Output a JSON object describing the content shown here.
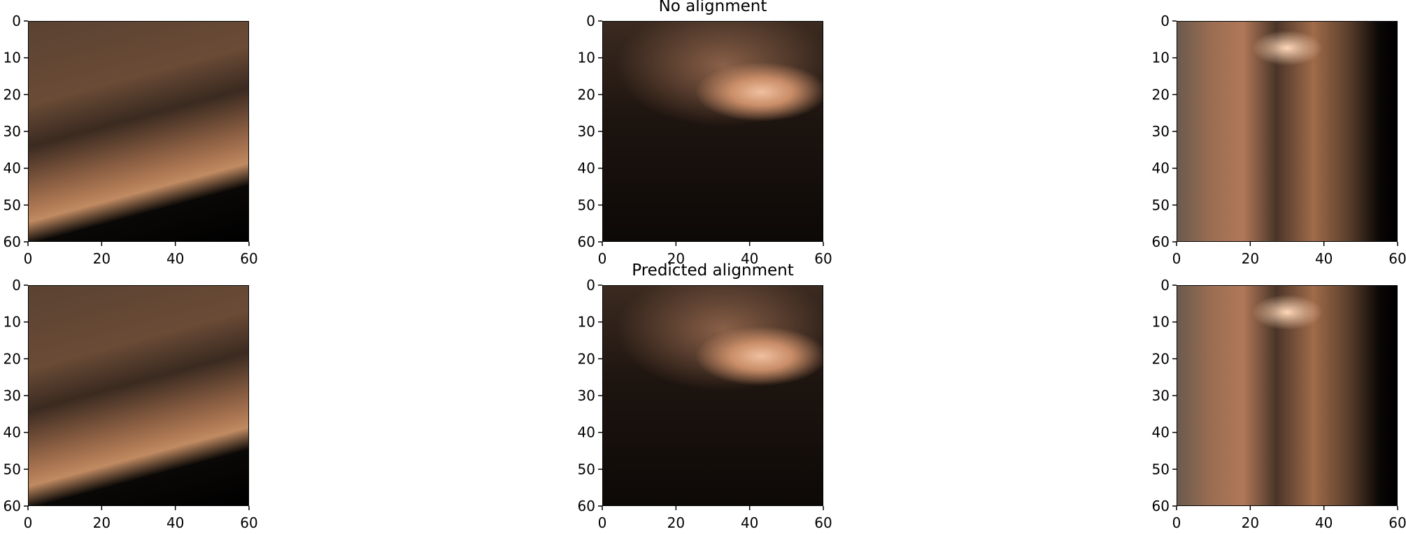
{
  "figure": {
    "panels": [
      {
        "id": "row1-col1",
        "title": "",
        "scene": "scene-a"
      },
      {
        "id": "row1-col2",
        "title": "No alignment",
        "scene": "scene-b"
      },
      {
        "id": "row1-col3",
        "title": "",
        "scene": "scene-c"
      },
      {
        "id": "row2-col1",
        "title": "",
        "scene": "scene-a"
      },
      {
        "id": "row2-col2",
        "title": "Predicted alignment",
        "scene": "scene-b"
      },
      {
        "id": "row2-col3",
        "title": "",
        "scene": "scene-c"
      }
    ],
    "x_ticks": [
      "0",
      "20",
      "40",
      "60"
    ],
    "y_ticks": [
      "0",
      "10",
      "20",
      "30",
      "40",
      "50",
      "60"
    ],
    "axis_range": [
      0,
      60
    ]
  }
}
